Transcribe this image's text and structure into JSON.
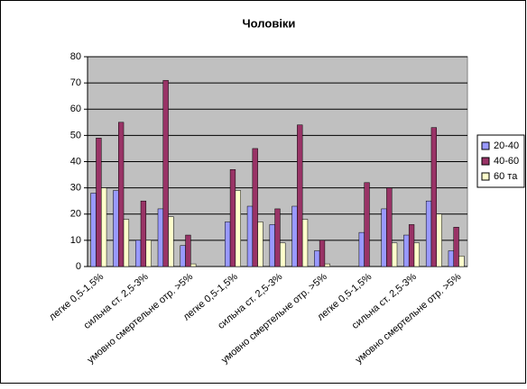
{
  "chart_data": {
    "type": "bar",
    "title": "Чоловіки",
    "categories": [
      "легке 0,5-1,5%",
      null,
      "сильна ст. 2,5-3%",
      null,
      "умовно смертельне отр. >5%",
      null,
      "легке 0,5-1,5%",
      null,
      "сильна ст. 2,5-3%",
      null,
      "умовно смертельне отр. >5%",
      null,
      "легке 0,5-1,5%",
      null,
      "сильна ст. 2,5-3%",
      null,
      "умовно смертельне отр. >5%"
    ],
    "series": [
      {
        "name": "20-40",
        "color": "#9999ff",
        "values": [
          28,
          29,
          10,
          22,
          8,
          null,
          17,
          23,
          16,
          23,
          6,
          null,
          13,
          22,
          12,
          25,
          6
        ]
      },
      {
        "name": "40-60",
        "color": "#993366",
        "values": [
          49,
          55,
          25,
          71,
          12,
          null,
          37,
          45,
          22,
          54,
          10,
          null,
          32,
          30,
          16,
          53,
          15
        ]
      },
      {
        "name": "60 та",
        "color": "#ffffcc",
        "values": [
          30,
          18,
          10,
          19,
          1,
          null,
          29,
          17,
          9,
          18,
          1,
          null,
          0,
          9,
          9,
          20,
          4
        ]
      }
    ],
    "ylim": [
      0,
      80
    ],
    "yticks": [
      0,
      10,
      20,
      30,
      40,
      50,
      60,
      70,
      80
    ],
    "grid": true,
    "legend": "right"
  }
}
